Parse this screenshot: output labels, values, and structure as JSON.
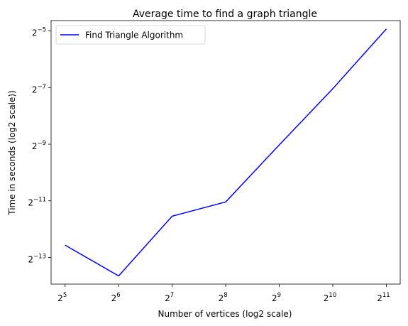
{
  "chart_data": {
    "type": "line",
    "title": "Average time to find a graph triangle",
    "xlabel": "Number of vertices (log2 scale)",
    "ylabel": "Time in seconds (log2 scale))",
    "x_scale": "log2",
    "y_scale": "log2",
    "xlim": [
      26.7,
      2450
    ],
    "ylim": [
      6.35e-05,
      0.0403
    ],
    "x_ticks": [
      {
        "value": 32,
        "base": "2",
        "exp": "5"
      },
      {
        "value": 64,
        "base": "2",
        "exp": "6"
      },
      {
        "value": 128,
        "base": "2",
        "exp": "7"
      },
      {
        "value": 256,
        "base": "2",
        "exp": "8"
      },
      {
        "value": 512,
        "base": "2",
        "exp": "9"
      },
      {
        "value": 1024,
        "base": "2",
        "exp": "10"
      },
      {
        "value": 2048,
        "base": "2",
        "exp": "11"
      }
    ],
    "y_ticks": [
      {
        "value": 0.0001220703125,
        "base": "2",
        "exp": "−13"
      },
      {
        "value": 0.00048828125,
        "base": "2",
        "exp": "−11"
      },
      {
        "value": 0.001953125,
        "base": "2",
        "exp": "−9"
      },
      {
        "value": 0.0078125,
        "base": "2",
        "exp": "−7"
      },
      {
        "value": 0.03125,
        "base": "2",
        "exp": "−5"
      }
    ],
    "grid": false,
    "legend": "top-left",
    "series": [
      {
        "name": "Find Triangle Algorithm",
        "color": "#0000ff",
        "x": [
          32,
          64,
          128,
          256,
          512,
          1024,
          2048
        ],
        "y": [
          0.000165,
          7.75e-05,
          0.000335,
          0.000475,
          0.00192,
          0.0076,
          0.0329
        ]
      }
    ]
  }
}
